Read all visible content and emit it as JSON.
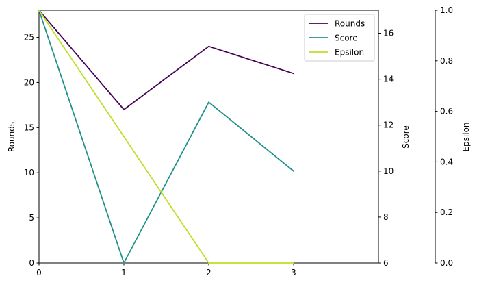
{
  "chart_data": {
    "type": "line",
    "x": [
      0,
      1,
      2,
      3
    ],
    "x_ticks": [
      "0",
      "1",
      "2",
      "3"
    ],
    "xlim": [
      0,
      4
    ],
    "series": [
      {
        "name": "Rounds",
        "axis": "left",
        "color": "#440154",
        "values": [
          28,
          17,
          24,
          21
        ]
      },
      {
        "name": "Score",
        "axis": "right",
        "color": "#21918c",
        "values": [
          17,
          6,
          13,
          10
        ]
      },
      {
        "name": "Epsilon",
        "axis": "right2",
        "color": "#bddf26",
        "values": [
          1.0,
          0.5,
          0.0,
          0.0
        ]
      }
    ],
    "axes": {
      "left": {
        "label": "Rounds",
        "color": "#440154",
        "ylim": [
          0,
          28
        ],
        "ticks": [
          0,
          5,
          10,
          15,
          20,
          25
        ]
      },
      "right": {
        "label": "Score",
        "color": "#21918c",
        "ylim": [
          6,
          17
        ],
        "ticks": [
          6,
          8,
          10,
          12,
          14,
          16
        ]
      },
      "right2": {
        "label": "Epsilon",
        "color": "#bddf26",
        "ylim": [
          0,
          1
        ],
        "ticks": [
          "0.0",
          "0.2",
          "0.4",
          "0.6",
          "0.8",
          "1.0"
        ]
      }
    },
    "legend": {
      "placement": "top-right",
      "entries": [
        "Rounds",
        "Score",
        "Epsilon"
      ]
    },
    "grid": false
  }
}
